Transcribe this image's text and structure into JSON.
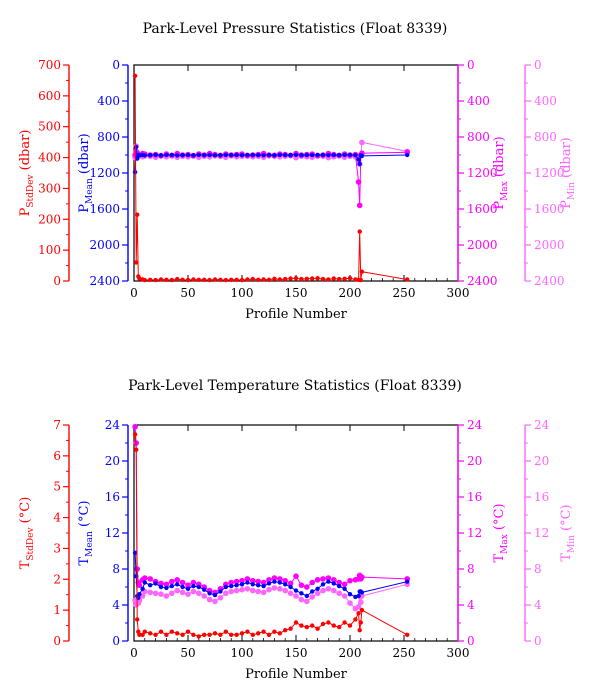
{
  "colors": {
    "stddev": "#ff0000",
    "mean": "#0000ff",
    "max": "#ff00ff",
    "min": "#ff66ff",
    "frame": "#000000"
  },
  "chart_data": [
    {
      "type": "line",
      "title": "Park-Level Pressure Statistics (Float 8339)",
      "xlabel": "Profile Number",
      "xlim": [
        0,
        300
      ],
      "xticks": [
        0,
        50,
        100,
        150,
        200,
        250,
        300
      ],
      "axes": [
        {
          "id": "stddev",
          "label": "P",
          "label_sub": "StdDev",
          "label_unit": " (dbar)",
          "lim": [
            0,
            700
          ],
          "inverted": false,
          "ticks": [
            0,
            100,
            200,
            300,
            400,
            500,
            600,
            700
          ]
        },
        {
          "id": "mean",
          "label": "P",
          "label_sub": "Mean",
          "label_unit": " (dbar)",
          "lim": [
            0,
            2400
          ],
          "inverted": true,
          "ticks": [
            0,
            400,
            800,
            1200,
            1600,
            2000,
            2400
          ]
        },
        {
          "id": "max",
          "label": "P",
          "label_sub": "Max",
          "label_unit": " (dbar)",
          "lim": [
            0,
            2400
          ],
          "inverted": true,
          "ticks": [
            0,
            400,
            800,
            1200,
            1600,
            2000,
            2400
          ]
        },
        {
          "id": "min",
          "label": "P",
          "label_sub": "Min",
          "label_unit": " (dbar)",
          "lim": [
            0,
            2400
          ],
          "inverted": true,
          "ticks": [
            0,
            400,
            800,
            1200,
            1600,
            2000,
            2400
          ]
        }
      ],
      "series": [
        {
          "axis": "stddev",
          "x": [
            1,
            2,
            3,
            4,
            5,
            8,
            10,
            15,
            20,
            25,
            30,
            35,
            40,
            45,
            50,
            55,
            60,
            65,
            70,
            75,
            80,
            85,
            90,
            95,
            100,
            105,
            110,
            115,
            120,
            125,
            130,
            135,
            140,
            145,
            150,
            155,
            160,
            165,
            170,
            175,
            180,
            185,
            190,
            195,
            200,
            205,
            208,
            209,
            210,
            211,
            253
          ],
          "y": [
            665,
            60,
            215,
            15,
            8,
            5,
            3,
            4,
            3,
            5,
            4,
            3,
            6,
            4,
            3,
            5,
            4,
            4,
            3,
            5,
            4,
            3,
            4,
            4,
            3,
            5,
            6,
            4,
            5,
            4,
            7,
            5,
            6,
            8,
            9,
            6,
            7,
            8,
            9,
            6,
            5,
            8,
            6,
            7,
            9,
            5,
            4,
            160,
            3,
            30,
            5
          ]
        },
        {
          "axis": "mean",
          "x": [
            1,
            2,
            3,
            4,
            5,
            8,
            10,
            15,
            20,
            25,
            30,
            35,
            40,
            45,
            50,
            55,
            60,
            65,
            70,
            75,
            80,
            85,
            90,
            95,
            100,
            105,
            110,
            115,
            120,
            125,
            130,
            135,
            140,
            145,
            150,
            155,
            160,
            165,
            170,
            175,
            180,
            185,
            190,
            195,
            200,
            205,
            208,
            209,
            210,
            211,
            253
          ],
          "y": [
            1190,
            910,
            1040,
            1000,
            1005,
            1000,
            1005,
            1002,
            998,
            1003,
            1000,
            999,
            1004,
            1001,
            1000,
            1002,
            999,
            1001,
            1000,
            1003,
            1002,
            999,
            1001,
            1000,
            1002,
            999,
            1000,
            1001,
            1003,
            1000,
            1002,
            999,
            1000,
            1001,
            998,
            1002,
            1000,
            1001,
            999,
            1000,
            1002,
            1000,
            1001,
            999,
            1000,
            1002,
            1050,
            1100,
            1002,
            1010,
            1000
          ]
        },
        {
          "axis": "max",
          "x": [
            1,
            2,
            3,
            4,
            5,
            8,
            10,
            15,
            20,
            25,
            30,
            35,
            40,
            45,
            50,
            55,
            60,
            65,
            70,
            75,
            80,
            85,
            90,
            95,
            100,
            105,
            110,
            115,
            120,
            125,
            130,
            135,
            140,
            145,
            150,
            155,
            160,
            165,
            170,
            175,
            180,
            185,
            190,
            195,
            200,
            205,
            208,
            209,
            210,
            211,
            253
          ],
          "y": [
            1000,
            960,
            980,
            990,
            995,
            985,
            990,
            1000,
            995,
            1010,
            990,
            1005,
            985,
            1000,
            995,
            1010,
            990,
            1000,
            985,
            995,
            1005,
            990,
            1000,
            995,
            990,
            1010,
            1000,
            995,
            985,
            1000,
            1010,
            990,
            995,
            1005,
            985,
            1000,
            995,
            990,
            1010,
            1000,
            985,
            995,
            1005,
            990,
            1000,
            995,
            1300,
            1560,
            1000,
            980,
            970
          ]
        },
        {
          "axis": "min",
          "x": [
            1,
            2,
            3,
            4,
            5,
            8,
            10,
            15,
            20,
            25,
            30,
            35,
            40,
            45,
            50,
            55,
            60,
            65,
            70,
            75,
            80,
            85,
            90,
            95,
            100,
            105,
            110,
            115,
            120,
            125,
            130,
            135,
            140,
            145,
            150,
            155,
            160,
            165,
            170,
            175,
            180,
            185,
            190,
            195,
            200,
            205,
            208,
            209,
            210,
            211,
            253
          ],
          "y": [
            1030,
            900,
            1020,
            1015,
            1010,
            1020,
            1010,
            1015,
            1025,
            1005,
            1020,
            1010,
            1025,
            1015,
            1020,
            1005,
            1025,
            1015,
            1020,
            1010,
            1015,
            1025,
            1010,
            1020,
            1015,
            1005,
            1020,
            1015,
            1025,
            1010,
            1000,
            1020,
            1015,
            1005,
            1030,
            1015,
            1020,
            1025,
            1005,
            1015,
            1030,
            1020,
            1010,
            1025,
            1015,
            1020,
            1060,
            1100,
            1010,
            860,
            960
          ]
        }
      ]
    },
    {
      "type": "line",
      "title": "Park-Level Temperature Statistics (Float 8339)",
      "xlabel": "Profile Number",
      "xlim": [
        0,
        300
      ],
      "xticks": [
        0,
        50,
        100,
        150,
        200,
        250,
        300
      ],
      "axes": [
        {
          "id": "stddev",
          "label": "T",
          "label_sub": "StdDev",
          "label_unit": " (°C)",
          "lim": [
            0,
            7
          ],
          "inverted": false,
          "ticks": [
            0,
            1,
            2,
            3,
            4,
            5,
            6,
            7
          ]
        },
        {
          "id": "mean",
          "label": "T",
          "label_sub": "Mean",
          "label_unit": " (°C)",
          "lim": [
            0,
            24
          ],
          "inverted": false,
          "ticks": [
            0,
            4,
            8,
            12,
            16,
            20,
            24
          ]
        },
        {
          "id": "max",
          "label": "T",
          "label_sub": "Max",
          "label_unit": " (°C)",
          "lim": [
            0,
            24
          ],
          "inverted": false,
          "ticks": [
            0,
            4,
            8,
            12,
            16,
            20,
            24
          ]
        },
        {
          "id": "min",
          "label": "T",
          "label_sub": "Min",
          "label_unit": " (°C)",
          "lim": [
            0,
            24
          ],
          "inverted": false,
          "ticks": [
            0,
            4,
            8,
            12,
            16,
            20,
            24
          ]
        }
      ],
      "series": [
        {
          "axis": "stddev",
          "x": [
            1,
            2,
            3,
            4,
            5,
            8,
            10,
            15,
            20,
            25,
            30,
            35,
            40,
            45,
            50,
            55,
            60,
            65,
            70,
            75,
            80,
            85,
            90,
            95,
            100,
            105,
            110,
            115,
            120,
            125,
            130,
            135,
            140,
            145,
            150,
            155,
            160,
            165,
            170,
            175,
            180,
            185,
            190,
            195,
            200,
            205,
            208,
            209,
            210,
            211,
            253
          ],
          "y": [
            6.7,
            6.2,
            0.7,
            0.3,
            0.2,
            0.2,
            0.3,
            0.25,
            0.2,
            0.3,
            0.2,
            0.3,
            0.25,
            0.2,
            0.3,
            0.2,
            0.15,
            0.2,
            0.2,
            0.25,
            0.2,
            0.3,
            0.2,
            0.2,
            0.25,
            0.3,
            0.2,
            0.25,
            0.3,
            0.2,
            0.3,
            0.25,
            0.35,
            0.4,
            0.6,
            0.5,
            0.45,
            0.5,
            0.4,
            0.55,
            0.6,
            0.5,
            0.45,
            0.6,
            0.5,
            0.7,
            0.9,
            0.35,
            0.6,
            1.0,
            0.2
          ]
        },
        {
          "axis": "mean",
          "x": [
            1,
            2,
            3,
            4,
            5,
            8,
            10,
            15,
            20,
            25,
            30,
            35,
            40,
            45,
            50,
            55,
            60,
            65,
            70,
            75,
            80,
            85,
            90,
            95,
            100,
            105,
            110,
            115,
            120,
            125,
            130,
            135,
            140,
            145,
            150,
            155,
            160,
            165,
            170,
            175,
            180,
            185,
            190,
            195,
            200,
            205,
            208,
            209,
            210,
            211,
            253
          ],
          "y": [
            9.8,
            7.2,
            5.0,
            4.8,
            5.2,
            5.8,
            6.5,
            6.2,
            6.4,
            6.0,
            5.9,
            6.1,
            6.3,
            6.0,
            5.8,
            6.1,
            6.0,
            5.7,
            5.3,
            5.1,
            5.5,
            6.0,
            6.1,
            6.2,
            6.3,
            6.5,
            6.3,
            6.2,
            6.1,
            6.4,
            6.6,
            6.5,
            6.3,
            6.0,
            5.6,
            5.3,
            5.0,
            5.5,
            5.8,
            6.3,
            6.6,
            6.4,
            6.1,
            5.8,
            5.2,
            4.9,
            5.0,
            5.5,
            5.5,
            5.4,
            6.6
          ]
        },
        {
          "axis": "max",
          "x": [
            1,
            2,
            3,
            4,
            5,
            8,
            10,
            15,
            20,
            25,
            30,
            35,
            40,
            45,
            50,
            55,
            60,
            65,
            70,
            75,
            80,
            85,
            90,
            95,
            100,
            105,
            110,
            115,
            120,
            125,
            130,
            135,
            140,
            145,
            150,
            155,
            160,
            165,
            170,
            175,
            180,
            185,
            190,
            195,
            200,
            205,
            208,
            209,
            210,
            211,
            253
          ],
          "y": [
            23.8,
            22.0,
            8.0,
            6.5,
            6.2,
            6.8,
            7.0,
            6.9,
            6.6,
            6.4,
            6.3,
            6.6,
            6.8,
            6.5,
            6.2,
            6.5,
            6.3,
            6.0,
            5.6,
            5.4,
            5.8,
            6.3,
            6.5,
            6.6,
            6.7,
            6.9,
            6.7,
            6.6,
            6.5,
            6.8,
            7.0,
            6.9,
            6.7,
            6.4,
            7.2,
            6.2,
            6.0,
            6.5,
            6.8,
            6.9,
            7.0,
            6.8,
            6.5,
            6.3,
            6.7,
            6.8,
            6.9,
            7.3,
            6.9,
            7.1,
            6.9
          ]
        },
        {
          "axis": "min",
          "x": [
            1,
            2,
            3,
            4,
            5,
            8,
            10,
            15,
            20,
            25,
            30,
            35,
            40,
            45,
            50,
            55,
            60,
            65,
            70,
            75,
            80,
            85,
            90,
            95,
            100,
            105,
            110,
            115,
            120,
            125,
            130,
            135,
            140,
            145,
            150,
            155,
            160,
            165,
            170,
            175,
            180,
            185,
            190,
            195,
            200,
            205,
            208,
            209,
            210,
            211,
            253
          ],
          "y": [
            4.5,
            4.0,
            4.3,
            4.2,
            4.5,
            5.0,
            5.5,
            5.4,
            5.3,
            5.2,
            5.0,
            5.3,
            5.6,
            5.4,
            5.2,
            5.5,
            5.3,
            5.0,
            4.6,
            4.4,
            4.8,
            5.3,
            5.5,
            5.6,
            5.7,
            5.8,
            5.6,
            5.5,
            5.4,
            5.7,
            5.9,
            5.8,
            5.6,
            5.3,
            5.0,
            4.6,
            4.4,
            4.9,
            5.3,
            5.6,
            5.8,
            5.6,
            5.3,
            5.0,
            4.2,
            3.6,
            3.8,
            5.0,
            4.3,
            5.0,
            6.3
          ]
        }
      ]
    }
  ]
}
